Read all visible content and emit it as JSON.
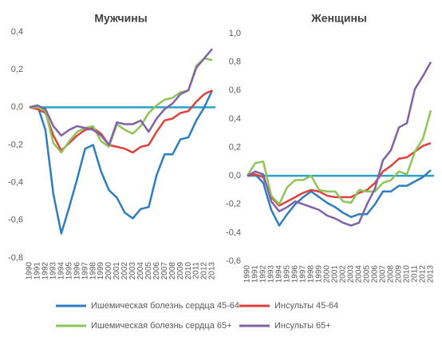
{
  "chart_data": [
    {
      "type": "line",
      "title": "Мужчины",
      "categories": [
        "1990",
        "1991",
        "1992",
        "1993",
        "1994",
        "1995",
        "1996",
        "1997",
        "1998",
        "1999",
        "2000",
        "2001",
        "2002",
        "2003",
        "2004",
        "2005",
        "2006",
        "2007",
        "2008",
        "2009",
        "2010",
        "2011",
        "2012",
        "2013"
      ],
      "ylim": [
        -0.8,
        0.4
      ],
      "yticks": [
        {
          "value": -0.8,
          "label": "-0,8"
        },
        {
          "value": -0.6,
          "label": "-0,6"
        },
        {
          "value": -0.4,
          "label": "-0,4"
        },
        {
          "value": -0.2,
          "label": "-0,2"
        },
        {
          "value": 0,
          "label": "0,0"
        },
        {
          "value": 0.2,
          "label": "0,2"
        },
        {
          "value": 0.4,
          "label": "0,4"
        }
      ],
      "zero_line_color": "#2aa1c6",
      "series": [
        {
          "name": "Ишемическая болезнь сердца 45-64",
          "color": "#2e7dc0",
          "values": [
            0,
            0.01,
            -0.12,
            -0.46,
            -0.67,
            -0.53,
            -0.38,
            -0.22,
            -0.2,
            -0.34,
            -0.44,
            -0.48,
            -0.56,
            -0.59,
            -0.54,
            -0.53,
            -0.36,
            -0.25,
            -0.25,
            -0.17,
            -0.16,
            -0.07,
            0.0,
            0.09
          ]
        },
        {
          "name": "Инсульты 45-64",
          "color": "#e0413a",
          "values": [
            0,
            -0.01,
            -0.03,
            -0.15,
            -0.23,
            -0.19,
            -0.15,
            -0.12,
            -0.11,
            -0.14,
            -0.2,
            -0.21,
            -0.22,
            -0.24,
            -0.21,
            -0.2,
            -0.13,
            -0.07,
            -0.06,
            -0.03,
            -0.02,
            0.03,
            0.07,
            0.09
          ]
        },
        {
          "name": "Ишемическая болезнь сердца 65+",
          "color": "#8dc556",
          "values": [
            0,
            0.0,
            -0.02,
            -0.19,
            -0.24,
            -0.18,
            -0.13,
            -0.11,
            -0.1,
            -0.18,
            -0.21,
            -0.09,
            -0.12,
            -0.14,
            -0.1,
            -0.03,
            0.01,
            0.04,
            0.05,
            0.08,
            0.09,
            0.22,
            0.26,
            0.25
          ]
        },
        {
          "name": "Инсульты 65+",
          "color": "#8062a8",
          "values": [
            0,
            0.01,
            -0.01,
            -0.1,
            -0.15,
            -0.12,
            -0.1,
            -0.11,
            -0.12,
            -0.15,
            -0.2,
            -0.08,
            -0.09,
            -0.09,
            -0.07,
            -0.13,
            -0.06,
            -0.01,
            0.02,
            0.07,
            0.09,
            0.21,
            0.26,
            0.31
          ]
        }
      ]
    },
    {
      "type": "line",
      "title": "Женщины",
      "categories": [
        "1990",
        "1991",
        "1992",
        "1993",
        "1994",
        "1995",
        "1996",
        "1997",
        "1998",
        "1999",
        "2000",
        "2001",
        "2002",
        "2003",
        "2004",
        "2005",
        "2006",
        "2007",
        "2008",
        "2009",
        "2010",
        "2011",
        "2012",
        "2013"
      ],
      "ylim": [
        -0.6,
        1.0
      ],
      "yticks": [
        {
          "value": -0.6,
          "label": "-0,6"
        },
        {
          "value": -0.4,
          "label": "-0,4"
        },
        {
          "value": -0.2,
          "label": "-0,2"
        },
        {
          "value": 0,
          "label": "0,0"
        },
        {
          "value": 0.2,
          "label": "0,2"
        },
        {
          "value": 0.4,
          "label": "0,4"
        },
        {
          "value": 0.6,
          "label": "0,6"
        },
        {
          "value": 0.8,
          "label": "0,8"
        },
        {
          "value": 1.0,
          "label": "1,0"
        }
      ],
      "zero_line_color": "#2aa1c6",
      "series": [
        {
          "color": "#2e7dc0",
          "values": [
            0,
            0.01,
            -0.05,
            -0.24,
            -0.35,
            -0.27,
            -0.2,
            -0.15,
            -0.11,
            -0.15,
            -0.19,
            -0.22,
            -0.26,
            -0.29,
            -0.27,
            -0.27,
            -0.2,
            -0.11,
            -0.11,
            -0.07,
            -0.07,
            -0.04,
            -0.01,
            0.04
          ]
        },
        {
          "color": "#e0413a",
          "values": [
            0,
            0.01,
            -0.01,
            -0.15,
            -0.21,
            -0.18,
            -0.15,
            -0.12,
            -0.1,
            -0.11,
            -0.14,
            -0.15,
            -0.15,
            -0.15,
            -0.12,
            -0.1,
            -0.05,
            0.03,
            0.07,
            0.12,
            0.13,
            0.17,
            0.21,
            0.23
          ]
        },
        {
          "color": "#8dc556",
          "values": [
            0,
            0.09,
            0.1,
            -0.14,
            -0.2,
            -0.08,
            -0.03,
            -0.03,
            0.0,
            -0.1,
            -0.11,
            -0.11,
            -0.18,
            -0.19,
            -0.1,
            -0.11,
            -0.11,
            -0.05,
            -0.03,
            0.03,
            0.01,
            0.17,
            0.26,
            0.46
          ]
        },
        {
          "color": "#8062a8",
          "values": [
            0,
            0.03,
            0.01,
            -0.18,
            -0.25,
            -0.22,
            -0.18,
            -0.2,
            -0.22,
            -0.24,
            -0.28,
            -0.3,
            -0.33,
            -0.35,
            -0.33,
            -0.2,
            -0.09,
            0.11,
            0.18,
            0.34,
            0.37,
            0.61,
            0.7,
            0.8
          ]
        }
      ]
    }
  ]
}
